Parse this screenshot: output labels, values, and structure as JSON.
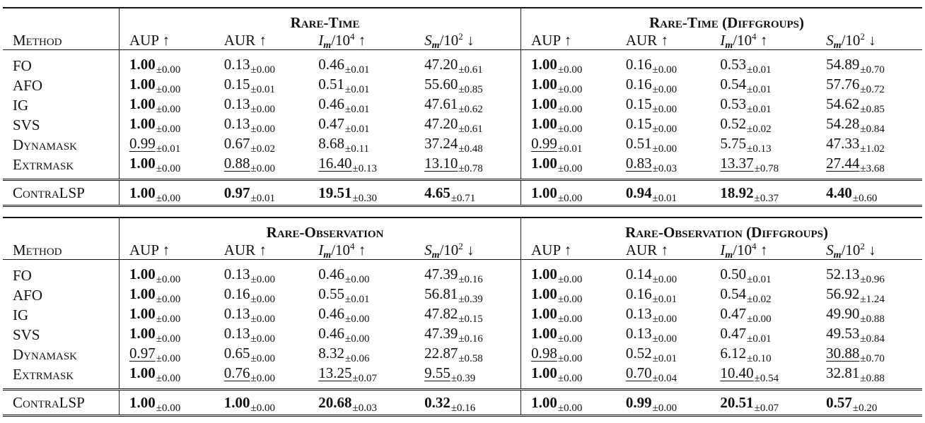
{
  "tables": [
    {
      "left_group": "Rare-Time",
      "right_group": "Rare-Time (Diffgroups)",
      "method_header": "Method",
      "columns": [
        "AUP ↑",
        "AUR ↑",
        "I_m/10^4 ↑",
        "S_m/10^2 ↓"
      ],
      "rows": [
        {
          "method": "FO",
          "left": [
            [
              "1.00",
              "±0.00",
              "b"
            ],
            [
              "0.13",
              "±0.00",
              ""
            ],
            [
              "0.46",
              "±0.01",
              ""
            ],
            [
              "47.20",
              "±0.61",
              ""
            ]
          ],
          "right": [
            [
              "1.00",
              "±0.00",
              "b"
            ],
            [
              "0.16",
              "±0.00",
              ""
            ],
            [
              "0.53",
              "±0.01",
              ""
            ],
            [
              "54.89",
              "±0.70",
              ""
            ]
          ]
        },
        {
          "method": "AFO",
          "left": [
            [
              "1.00",
              "±0.00",
              "b"
            ],
            [
              "0.15",
              "±0.01",
              ""
            ],
            [
              "0.51",
              "±0.01",
              ""
            ],
            [
              "55.60",
              "±0.85",
              ""
            ]
          ],
          "right": [
            [
              "1.00",
              "±0.00",
              "b"
            ],
            [
              "0.16",
              "±0.00",
              ""
            ],
            [
              "0.54",
              "±0.01",
              ""
            ],
            [
              "57.76",
              "±0.72",
              ""
            ]
          ]
        },
        {
          "method": "IG",
          "left": [
            [
              "1.00",
              "±0.00",
              "b"
            ],
            [
              "0.13",
              "±0.00",
              ""
            ],
            [
              "0.46",
              "±0.01",
              ""
            ],
            [
              "47.61",
              "±0.62",
              ""
            ]
          ],
          "right": [
            [
              "1.00",
              "±0.00",
              "b"
            ],
            [
              "0.15",
              "±0.00",
              ""
            ],
            [
              "0.53",
              "±0.01",
              ""
            ],
            [
              "54.62",
              "±0.85",
              ""
            ]
          ]
        },
        {
          "method": "SVS",
          "left": [
            [
              "1.00",
              "±0.00",
              "b"
            ],
            [
              "0.13",
              "±0.00",
              ""
            ],
            [
              "0.47",
              "±0.01",
              ""
            ],
            [
              "47.20",
              "±0.61",
              ""
            ]
          ],
          "right": [
            [
              "1.00",
              "±0.00",
              "b"
            ],
            [
              "0.15",
              "±0.00",
              ""
            ],
            [
              "0.52",
              "±0.02",
              ""
            ],
            [
              "54.28",
              "±0.84",
              ""
            ]
          ]
        },
        {
          "method": "Dynamask",
          "left": [
            [
              "0.99",
              "±0.01",
              "u"
            ],
            [
              "0.67",
              "±0.02",
              ""
            ],
            [
              "8.68",
              "±0.11",
              ""
            ],
            [
              "37.24",
              "±0.48",
              ""
            ]
          ],
          "right": [
            [
              "0.99",
              "±0.01",
              "u"
            ],
            [
              "0.51",
              "±0.00",
              ""
            ],
            [
              "5.75",
              "±0.13",
              ""
            ],
            [
              "47.33",
              "±1.02",
              ""
            ]
          ]
        },
        {
          "method": "Extrmask",
          "left": [
            [
              "1.00",
              "±0.00",
              "b"
            ],
            [
              "0.88",
              "±0.00",
              "u"
            ],
            [
              "16.40",
              "±0.13",
              "u"
            ],
            [
              "13.10",
              "±0.78",
              "u"
            ]
          ],
          "right": [
            [
              "1.00",
              "±0.00",
              "b"
            ],
            [
              "0.83",
              "±0.03",
              "u"
            ],
            [
              "13.37",
              "±0.78",
              "u"
            ],
            [
              "27.44",
              "±3.68",
              "u"
            ]
          ]
        }
      ],
      "ours": {
        "method": "ContraLSP",
        "left": [
          [
            "1.00",
            "±0.00",
            "b"
          ],
          [
            "0.97",
            "±0.01",
            "b"
          ],
          [
            "19.51",
            "±0.30",
            "b"
          ],
          [
            "4.65",
            "±0.71",
            "b"
          ]
        ],
        "right": [
          [
            "1.00",
            "±0.00",
            "b"
          ],
          [
            "0.94",
            "±0.01",
            "b"
          ],
          [
            "18.92",
            "±0.37",
            "b"
          ],
          [
            "4.40",
            "±0.60",
            "b"
          ]
        ]
      }
    },
    {
      "left_group": "Rare-Observation",
      "right_group": "Rare-Observation (Diffgroups)",
      "method_header": "Method",
      "columns": [
        "AUP ↑",
        "AUR ↑",
        "I_m/10^4 ↑",
        "S_m/10^2 ↓"
      ],
      "rows": [
        {
          "method": "FO",
          "left": [
            [
              "1.00",
              "±0.00",
              "b"
            ],
            [
              "0.13",
              "±0.00",
              ""
            ],
            [
              "0.46",
              "±0.00",
              ""
            ],
            [
              "47.39",
              "±0.16",
              ""
            ]
          ],
          "right": [
            [
              "1.00",
              "±0.00",
              "b"
            ],
            [
              "0.14",
              "±0.00",
              ""
            ],
            [
              "0.50",
              "±0.01",
              ""
            ],
            [
              "52.13",
              "±0.96",
              ""
            ]
          ]
        },
        {
          "method": "AFO",
          "left": [
            [
              "1.00",
              "±0.00",
              "b"
            ],
            [
              "0.16",
              "±0.00",
              ""
            ],
            [
              "0.55",
              "±0.01",
              ""
            ],
            [
              "56.81",
              "±0.39",
              ""
            ]
          ],
          "right": [
            [
              "1.00",
              "±0.00",
              "b"
            ],
            [
              "0.16",
              "±0.01",
              ""
            ],
            [
              "0.54",
              "±0.02",
              ""
            ],
            [
              "56.92",
              "±1.24",
              ""
            ]
          ]
        },
        {
          "method": "IG",
          "left": [
            [
              "1.00",
              "±0.00",
              "b"
            ],
            [
              "0.13",
              "±0.00",
              ""
            ],
            [
              "0.46",
              "±0.00",
              ""
            ],
            [
              "47.82",
              "±0.15",
              ""
            ]
          ],
          "right": [
            [
              "1.00",
              "±0.00",
              "b"
            ],
            [
              "0.13",
              "±0.00",
              ""
            ],
            [
              "0.47",
              "±0.00",
              ""
            ],
            [
              "49.90",
              "±0.88",
              ""
            ]
          ]
        },
        {
          "method": "SVS",
          "left": [
            [
              "1.00",
              "±0.00",
              "b"
            ],
            [
              "0.13",
              "±0.00",
              ""
            ],
            [
              "0.46",
              "±0.00",
              ""
            ],
            [
              "47.39",
              "±0.16",
              ""
            ]
          ],
          "right": [
            [
              "1.00",
              "±0.00",
              "b"
            ],
            [
              "0.13",
              "±0.00",
              ""
            ],
            [
              "0.47",
              "±0.01",
              ""
            ],
            [
              "49.53",
              "±0.84",
              ""
            ]
          ]
        },
        {
          "method": "Dynamask",
          "left": [
            [
              "0.97",
              "±0.00",
              "u"
            ],
            [
              "0.65",
              "±0.00",
              ""
            ],
            [
              "8.32",
              "±0.06",
              ""
            ],
            [
              "22.87",
              "±0.58",
              ""
            ]
          ],
          "right": [
            [
              "0.98",
              "±0.00",
              "u"
            ],
            [
              "0.52",
              "±0.01",
              ""
            ],
            [
              "6.12",
              "±0.10",
              ""
            ],
            [
              "30.88",
              "±0.70",
              "u"
            ]
          ]
        },
        {
          "method": "Extrmask",
          "left": [
            [
              "1.00",
              "±0.00",
              "b"
            ],
            [
              "0.76",
              "±0.00",
              "u"
            ],
            [
              "13.25",
              "±0.07",
              "u"
            ],
            [
              "9.55",
              "±0.39",
              "u"
            ]
          ],
          "right": [
            [
              "1.00",
              "±0.00",
              "b"
            ],
            [
              "0.70",
              "±0.04",
              "u"
            ],
            [
              "10.40",
              "±0.54",
              "u"
            ],
            [
              "32.81",
              "±0.88",
              ""
            ]
          ]
        }
      ],
      "ours": {
        "method": "ContraLSP",
        "left": [
          [
            "1.00",
            "±0.00",
            "b"
          ],
          [
            "1.00",
            "±0.00",
            "b"
          ],
          [
            "20.68",
            "±0.03",
            "b"
          ],
          [
            "0.32",
            "±0.16",
            "b"
          ]
        ],
        "right": [
          [
            "1.00",
            "±0.00",
            "b"
          ],
          [
            "0.99",
            "±0.00",
            "b"
          ],
          [
            "20.51",
            "±0.07",
            "b"
          ],
          [
            "0.57",
            "±0.20",
            "b"
          ]
        ]
      }
    }
  ]
}
